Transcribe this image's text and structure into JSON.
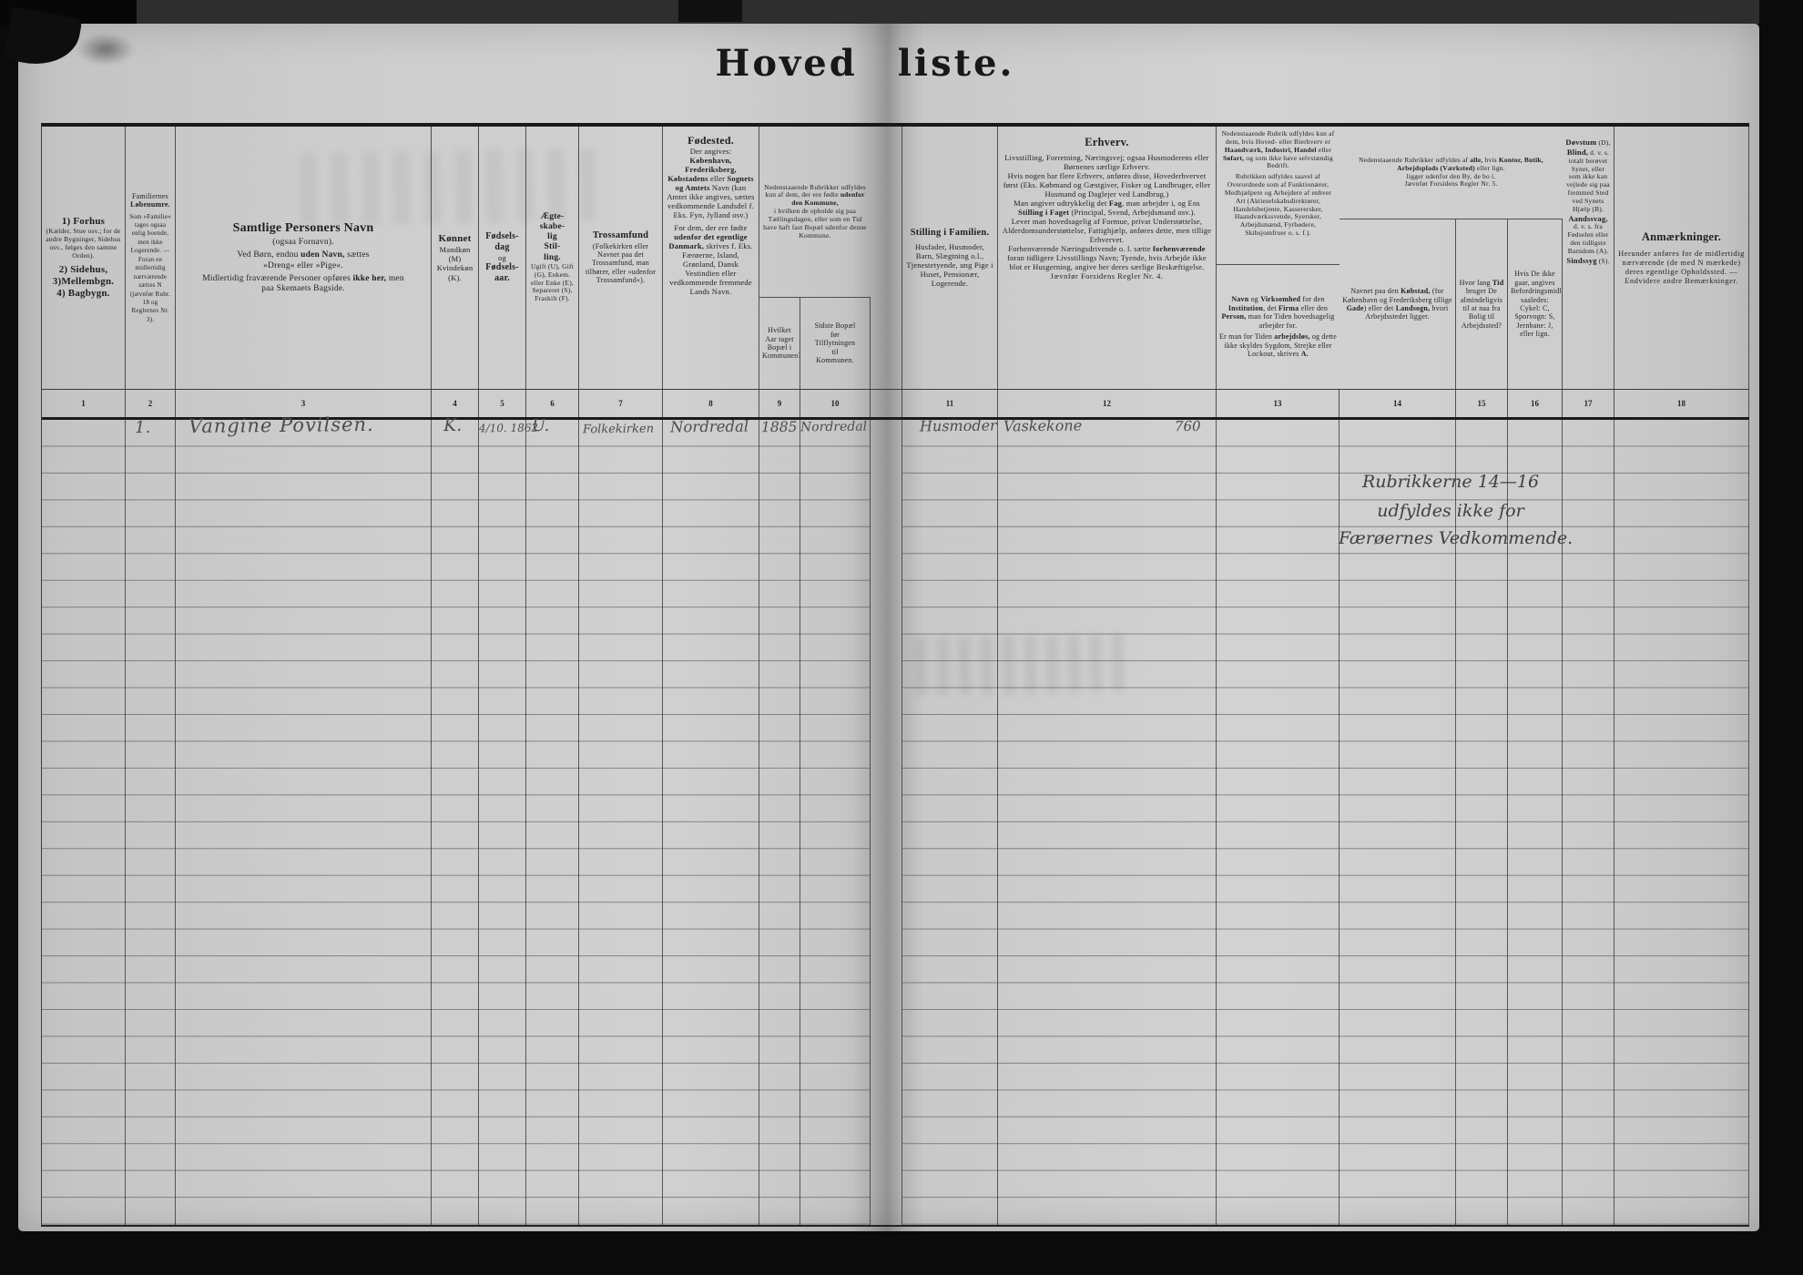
{
  "colors": {
    "paper": "#cccccc",
    "ink": "#1f1f1f",
    "pencil": "#4d4d4d"
  },
  "document": {
    "title_word1": "Hoved",
    "title_word2": "liste."
  },
  "col_numbers": [
    "1",
    "2",
    "3",
    "4",
    "5",
    "6",
    "7",
    "8",
    "9",
    "10",
    "11",
    "12",
    "13",
    "14",
    "15",
    "16",
    "17",
    "18"
  ],
  "headers": {
    "c1": [
      {
        "t": "1) Forhus",
        "b": 1,
        "sz": 11,
        "nl": 1
      },
      {
        "t": "(Kælder, Stue osv.; for de andre Bygninger, Sidehus osv., følges den samme Orden).",
        "sz": 7.5,
        "nl": 1
      },
      {
        "sp": 4
      },
      {
        "t": "2) Sidehus,",
        "b": 1,
        "sz": 11,
        "nl": 1
      },
      {
        "t": "3)Mellembgn.",
        "b": 1,
        "sz": 11,
        "nl": 1
      },
      {
        "t": "4) Bagbygn.",
        "b": 1,
        "sz": 11
      }
    ],
    "c2": [
      {
        "t": "Familiernes",
        "nl": 1
      },
      {
        "t": "Løbenumre.",
        "b": 1,
        "nl": 1
      },
      {
        "sp": 3
      },
      {
        "t": "Som »Familie« tages ogsaa enlig boende, men ikke Logerende. — Foran en midlertidig nærværende sættes N (jævnfør Rubr. 18 og Reglernes Nr. 3).",
        "sz": 7
      }
    ],
    "c3": [
      {
        "t": "Samtlige Personers Navn",
        "b": 1,
        "sz": 14,
        "nl": 1
      },
      {
        "sp": 2
      },
      {
        "t": "(ogsaa Fornavn).",
        "nl": 1
      },
      {
        "sp": 3
      },
      {
        "t": "Ved Børn, endnu "
      },
      {
        "t": "uden Navn,",
        "b": 1
      },
      {
        "t": " sættes",
        "nl": 1
      },
      {
        "t": "»Dreng« eller »Pige«.",
        "nl": 1
      },
      {
        "sp": 3
      },
      {
        "t": "Midlertidig fraværende Personer opføres "
      },
      {
        "t": "ikke her,",
        "b": 1
      },
      {
        "t": " men",
        "nl": 1
      },
      {
        "t": "paa Skemaets Bagside."
      }
    ],
    "c4": [
      {
        "t": "Kønnet",
        "b": 1,
        "sz": 11,
        "nl": 1
      },
      {
        "t": "Mandkøn (M) Kvindekøn (K)."
      }
    ],
    "c5": [
      {
        "t": "Fødsels-",
        "b": 1,
        "sz": 10,
        "nl": 1
      },
      {
        "t": "dag",
        "b": 1,
        "sz": 10,
        "nl": 1
      },
      {
        "t": "og",
        "nl": 1
      },
      {
        "t": "Fødsels-",
        "b": 1,
        "sz": 10,
        "nl": 1
      },
      {
        "t": "aar.",
        "b": 1,
        "sz": 10
      }
    ],
    "c6": [
      {
        "t": "Ægte-",
        "b": 1,
        "sz": 9.5,
        "nl": 1
      },
      {
        "t": "skabe-",
        "b": 1,
        "sz": 9.5,
        "nl": 1
      },
      {
        "t": "lig",
        "b": 1,
        "sz": 9.5,
        "nl": 1
      },
      {
        "t": "Stil-",
        "b": 1,
        "sz": 9.5,
        "nl": 1
      },
      {
        "t": "ling.",
        "b": 1,
        "sz": 9.5,
        "nl": 1
      },
      {
        "t": "Ugift (U), Gift (G), Enkem. eller Enke (E), Separeret (S), Fraskilt (F).",
        "sz": 7.5
      }
    ],
    "c7": [
      {
        "t": "Trossamfund",
        "b": 1,
        "sz": 10.5,
        "nl": 1
      },
      {
        "t": "(Folkekirken eller Navnet paa det Trossamfund, man tilhører, eller »udenfor Trossamfund«)."
      }
    ],
    "c8": [
      {
        "t": "Fødested.",
        "b": 1,
        "sz": 12,
        "nl": 1
      },
      {
        "t": "Der angives:",
        "nl": 1
      },
      {
        "t": "København, Frederiksberg, Købstadens",
        "b": 1
      },
      {
        "t": " eller "
      },
      {
        "t": "Sognets og Amtets",
        "b": 1
      },
      {
        "t": " Navn (kan Amtet ikke angives, sættes vedkommende Landsdel f. Eks. Fyn, Jylland osv.)",
        "nl": 1
      },
      {
        "sp": 4
      },
      {
        "t": "For dem, der ere fødte "
      },
      {
        "t": "udenfor det egentlige Danmark,",
        "b": 1
      },
      {
        "t": " skrives f. Eks. Færøerne, Island, Grønland, Dansk Vestindien eller vedkommende fremmede Lands Navn."
      }
    ],
    "c9_10": [
      {
        "t": "Nedenstaaende Rubrikker udfyldes kun af dem, der ere fødte ",
        "nl": 0
      },
      {
        "t": "udenfor den Kommune,",
        "b": 1,
        "nl": 1
      },
      {
        "t": "i hvilken de opholde sig paa Tællingsdagen, eller som en Tid have haft fast Bopæl udenfor denne Kommune."
      }
    ],
    "c9": [
      {
        "t": "Hvilket Aar taget Bopæl i Kommunen?"
      }
    ],
    "c10": [
      {
        "t": "Sidste Bopæl",
        "nl": 1
      },
      {
        "t": "før",
        "nl": 1
      },
      {
        "t": "Tilflytningen",
        "nl": 1
      },
      {
        "t": "til",
        "nl": 1
      },
      {
        "t": "Kommunen."
      }
    ],
    "c11": [
      {
        "t": "Stilling i Familien.",
        "b": 1,
        "sz": 10.5,
        "nl": 1
      },
      {
        "sp": 3
      },
      {
        "t": "Husfader, Husmoder, Barn, Slægtning o.l., Tjenestetyende, ung Pige i Huset, Pensionær, Logerende."
      }
    ],
    "c12": [
      {
        "t": "Erhverv.",
        "b": 1,
        "sz": 12.5,
        "nl": 1
      },
      {
        "sp": 4
      },
      {
        "t": "Livsstilling, Forretning, Næringsvej; ogsaa Husmoderens eller Børnenes særlige Erhverv.",
        "nl": 1
      },
      {
        "t": "Hvis nogen har flere Erhverv, anføres disse, Hovederhvervet først (Eks. Købmand og Gæstgiver, Fisker og Landbruger, eller Husmand og Daglejer ved Landbrug.)",
        "nl": 1
      },
      {
        "t": "Man angiver udtrykkelig det "
      },
      {
        "t": "Fag",
        "b": 1
      },
      {
        "t": ", man arbejder i, og Ens "
      },
      {
        "t": "Stilling i Faget",
        "b": 1
      },
      {
        "t": " (Principal, Svend, Arbejdsmand osv.).",
        "nl": 1
      },
      {
        "t": "Lever man hovedsagelig af Formue, privat Understøttelse, Alderdomsunderstøttelse, Fattighjælp, anføres dette, men tillige Erhvervet.",
        "nl": 1
      },
      {
        "t": "Forhenværende Næringsdrivende o. l. sætte "
      },
      {
        "t": "forhenværende",
        "b": 1
      },
      {
        "t": " foran tidligere Livsstillings Navn; Tyende, hvis Arbejde ikke blot er Husgerning, angive her deres særlige Beskæftigelse.",
        "nl": 1
      },
      {
        "t": "Jævnfør Forsidens Regler Nr. 4.",
        "ls": 0.5
      }
    ],
    "c13_top": [
      {
        "t": "Nedenstaaende Rubrik udfyldes kun af dem, hvis Hoved- eller Bierhverv er "
      },
      {
        "t": "Haandværk, Industri, Handel",
        "b": 1
      },
      {
        "t": " eller "
      },
      {
        "t": "Søfart,",
        "b": 1
      },
      {
        "t": " og som ikke have selvstændig Bedrift.",
        "nl": 1
      },
      {
        "sp": 3
      },
      {
        "t": "Rubrikken udfyldes saavel af Overordnede som af Funktionærer, Medhjælpere og Arbejdere af enhver Art (Aktieselskabsdirektører, Handelsbetjente, Kasserersker, Haandværkssvende, Syersker, Arbejdsmænd, Fyrbødere, Skibsjomfruer o. s. f.)."
      }
    ],
    "c13_bottom": [
      {
        "t": "Navn",
        "b": 1
      },
      {
        "t": " og "
      },
      {
        "t": "Virksomhed",
        "b": 1
      },
      {
        "t": " for den "
      },
      {
        "t": "Institution",
        "b": 1
      },
      {
        "t": ", det "
      },
      {
        "t": "Firma",
        "b": 1
      },
      {
        "t": " eller den "
      },
      {
        "t": "Person,",
        "b": 1
      },
      {
        "t": " man for Tiden hovedsagelig arbejder for.",
        "nl": 1
      },
      {
        "sp": 3
      },
      {
        "t": "Er man for Tiden "
      },
      {
        "t": "arbejdsløs,",
        "b": 1
      },
      {
        "t": " og dette ikke skyldes Sygdom, Strejke eller Lockout, skrives "
      },
      {
        "t": "A.",
        "b": 1
      }
    ],
    "c14_16": [
      {
        "t": "Nedenstaaende Rubrikker udfyldes af "
      },
      {
        "t": "alle,",
        "b": 1
      },
      {
        "t": " hvis "
      },
      {
        "t": "Kontor, Butik, Arbejdsplads (Værksted)",
        "b": 1
      },
      {
        "t": " eller lign.",
        "nl": 1
      },
      {
        "t": "ligger udenfor den By, de bo i.",
        "nl": 1
      },
      {
        "t": "Jævnfør Forsidens Regler Nr. 5."
      }
    ],
    "c14": [
      {
        "t": "Navnet paa den "
      },
      {
        "t": "Købstad,",
        "b": 1
      },
      {
        "t": " (for København og Frederiksberg tillige "
      },
      {
        "t": "Gade",
        "b": 1
      },
      {
        "t": ") eller det "
      },
      {
        "t": "Landsogn,",
        "b": 1
      },
      {
        "t": " hvori Arbejdsstedet ligger."
      }
    ],
    "c15": [
      {
        "t": "Hvor lang "
      },
      {
        "t": "Tid",
        "b": 1
      },
      {
        "t": " bruger De almindeligvis til at naa fra Bolig til Arbejdssted?"
      }
    ],
    "c16": [
      {
        "t": "Hvis De ikke gaar, angives Befordringsmidlet saaledes: Cykel: C, Sporvogn: S, Jernbane: J, eller lign."
      }
    ],
    "c17": [
      {
        "t": "Døvstum",
        "b": 1,
        "sz": 8.5
      },
      {
        "t": " (D),",
        "nl": 1
      },
      {
        "t": "Blind,",
        "b": 1,
        "sz": 8.5
      },
      {
        "t": " d. v. s. totalt berøvet Synet, eller som ikke kan vejlede sig paa fremmed Sted ved Synets Hjælp (B).",
        "nl": 1
      },
      {
        "t": "Aandssvag,",
        "b": 1,
        "sz": 8.5
      },
      {
        "t": " d. v. s. fra Fødselen eller den tidligste Barndom (A).",
        "nl": 1
      },
      {
        "t": "Sindssyg",
        "b": 1,
        "sz": 8.5
      },
      {
        "t": " (S)."
      }
    ],
    "c18": [
      {
        "t": "Anmærkninger.",
        "b": 1,
        "sz": 12.5,
        "nl": 1
      },
      {
        "sp": 5
      },
      {
        "t": "Herunder anføres for de midlertidig nærværende (de med N mærkede) deres egentlige Opholdssted. — Endvidere andre Bemærkninger.",
        "ls": 0.5
      }
    ]
  },
  "entries": {
    "lobenr": "1.",
    "navn": "Vangine Povilsen.",
    "kon": "K.",
    "fodselsdag": "4/10. 1862",
    "aegteskabelig": "U.",
    "trossamfund": "Folkekirken",
    "fodested": "Nordredal",
    "tilflytningsaar": "1885",
    "sidste_bopael": "Nordredal",
    "stilling": "Husmoder",
    "erhverv": "Vaskekone",
    "erhverv_indkomst": "760"
  },
  "note": {
    "l1": "Rubrikkerne 14—16",
    "l2": "udfyldes ikke for",
    "l3": "Færøernes Vedkommende."
  }
}
